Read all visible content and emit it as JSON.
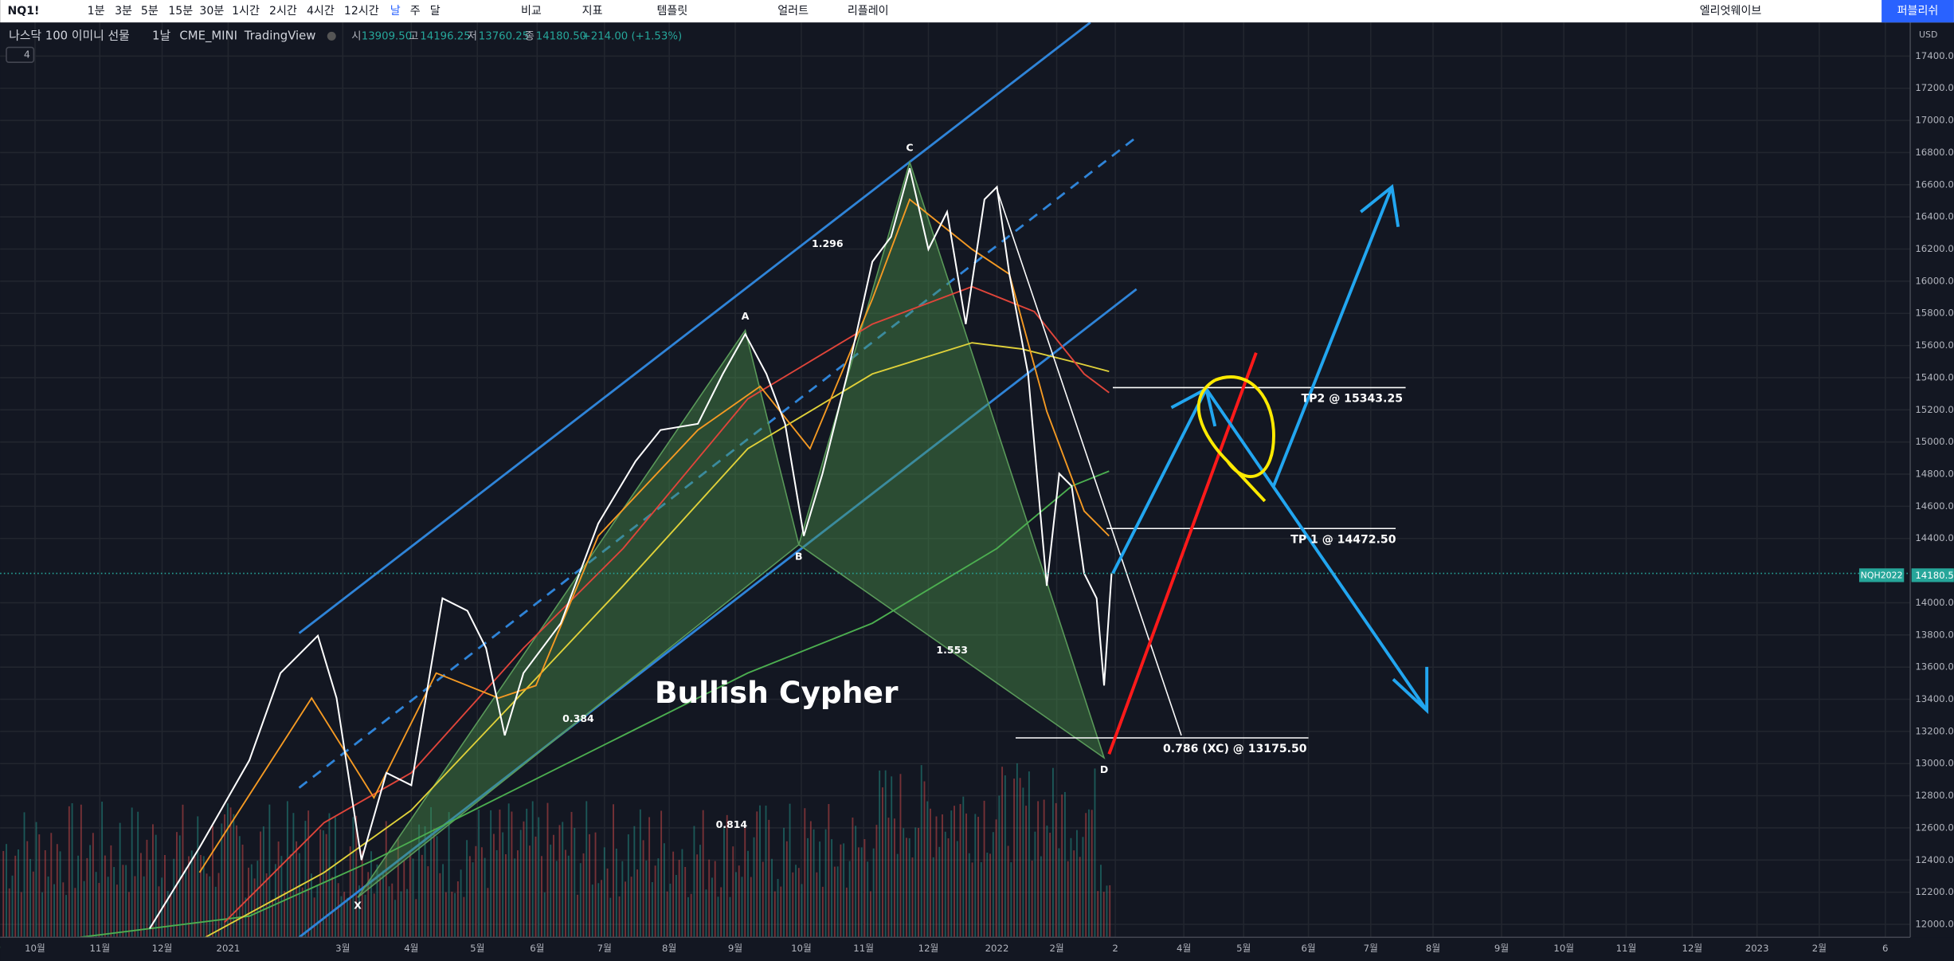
{
  "toolbar": {
    "symbol": "NQ1!",
    "intervals": [
      "1분",
      "3분",
      "5분",
      "15분",
      "30분",
      "1시간",
      "2시간",
      "4시간",
      "12시간",
      "날",
      "주",
      "달"
    ],
    "compare": "비교",
    "indicators": "지표",
    "templates": "템플릿",
    "alert": "얼러트",
    "replay": "리플레이",
    "layout": "엘리엇웨이브",
    "publish": "퍼블리쉬"
  },
  "legend": {
    "name": "나스닥 100 이미니 선물",
    "interval": "1날",
    "exchange": "CME_MINI",
    "source": "TradingView",
    "open_label": "시",
    "open": "13909.50",
    "high_label": "고",
    "high": "14196.25",
    "low_label": "저",
    "low": "13760.25",
    "close_label": "종",
    "close": "14180.50",
    "change": "+214.00 (+1.53%)",
    "indicator_count": "4"
  },
  "price_axis": {
    "currency": "USD",
    "labels": [
      "17400.00",
      "17200.00",
      "17000.00",
      "16800.00",
      "16600.00",
      "16400.00",
      "16200.00",
      "16000.00",
      "15800.00",
      "15600.00",
      "15400.00",
      "15200.00",
      "15000.00",
      "14800.00",
      "14600.00",
      "14400.00",
      "14000.00",
      "13800.00",
      "13600.00",
      "13400.00",
      "13200.00",
      "13000.00",
      "12800.00",
      "12600.00",
      "12400.00",
      "12200.00",
      "12000.00"
    ],
    "last_symbol": "NQH2022",
    "last_price": "14180.50"
  },
  "time_axis": {
    "labels": [
      "10월",
      "11월",
      "12월",
      "2021",
      "3월",
      "4월",
      "5월",
      "6월",
      "7월",
      "8월",
      "9월",
      "10월",
      "11월",
      "12월",
      "2022",
      "2월",
      "2",
      "4월",
      "5월",
      "6월",
      "7월",
      "8월",
      "9월",
      "10월",
      "11월",
      "12월",
      "2023",
      "2월",
      "6"
    ]
  },
  "annotations": {
    "x": "X",
    "a": "A",
    "b": "B",
    "c": "C",
    "d": "D",
    "ratio_xa_c": "1.296",
    "ratio_ab": "0.384",
    "ratio_bd": "1.553",
    "ratio_xd": "0.814",
    "pattern": "Bullish Cypher",
    "tp2": "TP2 @ 15343.25",
    "tp1": "TP 1 @ 14472.50",
    "entry": "0.786 (XC) @ 13175.50"
  }
}
